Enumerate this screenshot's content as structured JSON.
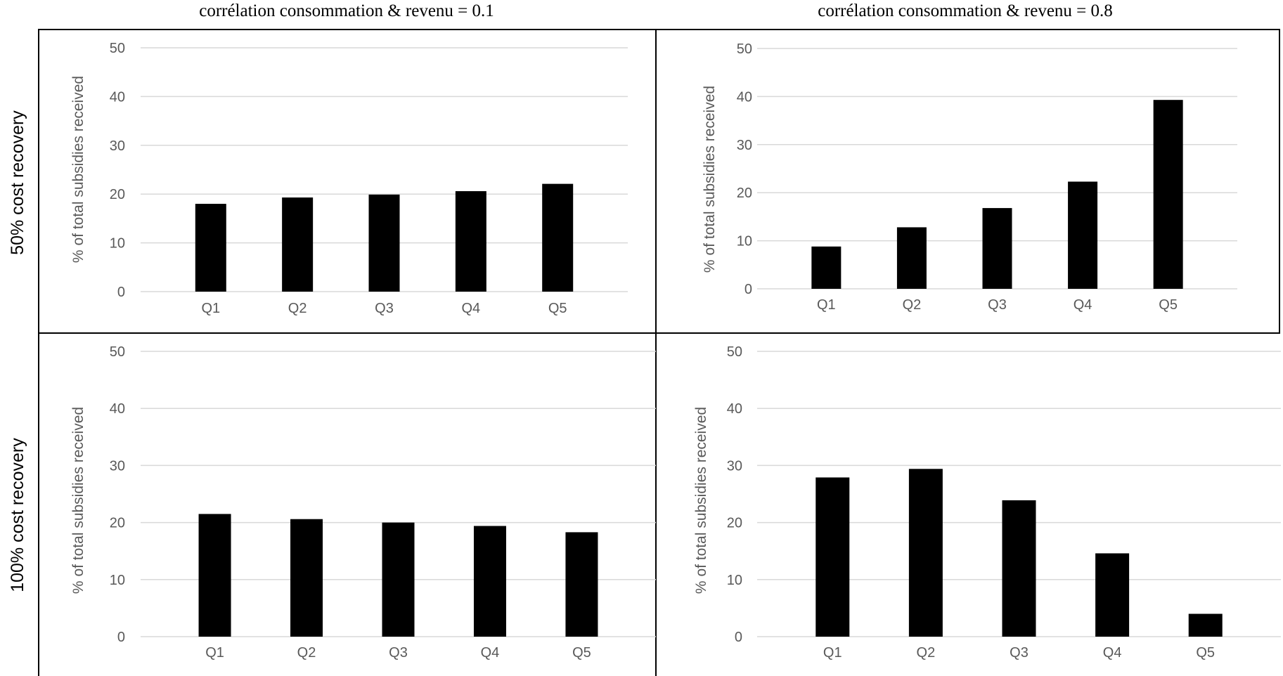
{
  "column_titles": [
    "corrélation consommation & revenu = 0.1",
    "corrélation consommation & revenu = 0.8"
  ],
  "row_titles": [
    "50% cost recovery",
    "100% cost recovery"
  ],
  "colors": {
    "bar": "#000000",
    "grid": "#d9d9d9",
    "text": "#595959",
    "border": "#000000"
  },
  "chart_data": [
    {
      "type": "bar",
      "title": "",
      "xlabel": "",
      "ylabel": "% of total subsidies received",
      "categories": [
        "Q1",
        "Q2",
        "Q3",
        "Q4",
        "Q5"
      ],
      "values": [
        18.0,
        19.3,
        19.9,
        20.6,
        22.1
      ],
      "ylim": [
        0,
        50
      ],
      "yticks": [
        0,
        10,
        20,
        30,
        40,
        50
      ],
      "grid": true,
      "legend": "none"
    },
    {
      "type": "bar",
      "title": "",
      "xlabel": "",
      "ylabel": "% of total subsidies received",
      "categories": [
        "Q1",
        "Q2",
        "Q3",
        "Q4",
        "Q5"
      ],
      "values": [
        8.8,
        12.8,
        16.8,
        22.3,
        39.3
      ],
      "ylim": [
        0,
        50
      ],
      "yticks": [
        0,
        10,
        20,
        30,
        40,
        50
      ],
      "grid": true,
      "legend": "none"
    },
    {
      "type": "bar",
      "title": "",
      "xlabel": "",
      "ylabel": "% of total subsidies received",
      "categories": [
        "Q1",
        "Q2",
        "Q3",
        "Q4",
        "Q5"
      ],
      "values": [
        21.5,
        20.6,
        20.0,
        19.4,
        18.3
      ],
      "ylim": [
        0,
        50
      ],
      "yticks": [
        0,
        10,
        20,
        30,
        40,
        50
      ],
      "grid": true,
      "legend": "none"
    },
    {
      "type": "bar",
      "title": "",
      "xlabel": "",
      "ylabel": "% of total subsidies received",
      "categories": [
        "Q1",
        "Q2",
        "Q3",
        "Q4",
        "Q5"
      ],
      "values": [
        27.9,
        29.4,
        23.9,
        14.6,
        4.0
      ],
      "ylim": [
        0,
        50
      ],
      "yticks": [
        0,
        10,
        20,
        30,
        40,
        50
      ],
      "grid": true,
      "legend": "none"
    }
  ]
}
